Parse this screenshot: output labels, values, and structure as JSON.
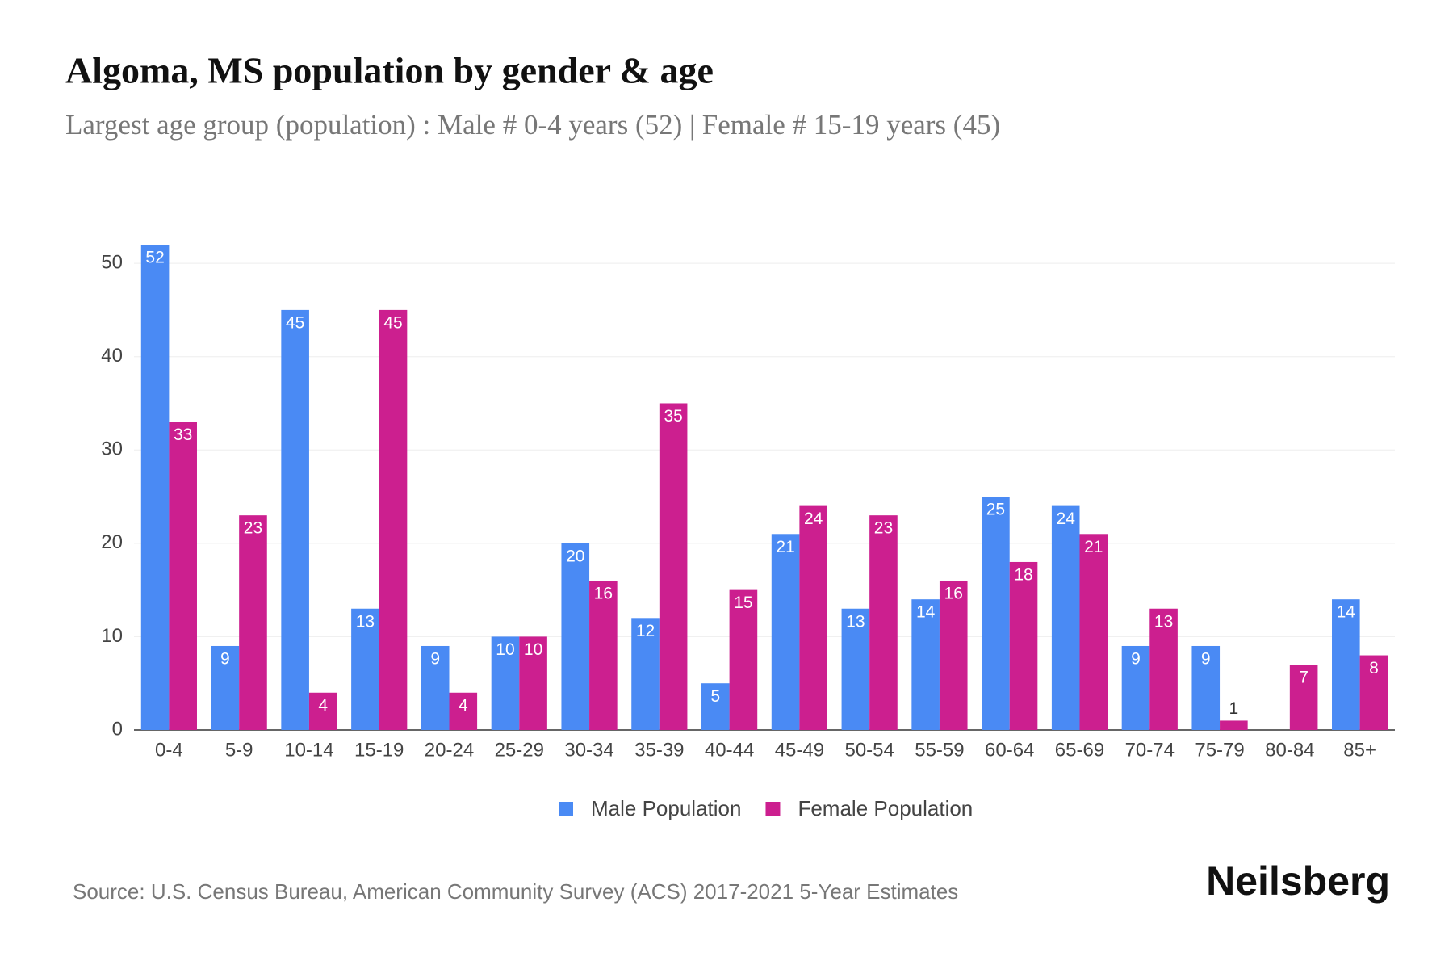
{
  "chart_data": {
    "type": "bar",
    "title": "Algoma, MS population by gender & age",
    "subtitle": "Largest age group (population) : Male # 0-4 years (52) | Female # 15-19 years (45)",
    "source": "Source: U.S. Census Bureau, American Community Survey (ACS) 2017-2021 5-Year Estimates",
    "brand": "Neilsberg",
    "categories": [
      "0-4",
      "5-9",
      "10-14",
      "15-19",
      "20-24",
      "25-29",
      "30-34",
      "35-39",
      "40-44",
      "45-49",
      "50-54",
      "55-59",
      "60-64",
      "65-69",
      "70-74",
      "75-79",
      "80-84",
      "85+"
    ],
    "series": [
      {
        "name": "Male Population",
        "color": "#4a8af4",
        "values": [
          52,
          9,
          45,
          13,
          9,
          10,
          20,
          12,
          5,
          21,
          13,
          14,
          25,
          24,
          9,
          9,
          0,
          14
        ]
      },
      {
        "name": "Female Population",
        "color": "#cc1f8f",
        "values": [
          33,
          23,
          4,
          45,
          4,
          10,
          16,
          35,
          15,
          24,
          23,
          16,
          18,
          21,
          13,
          1,
          7,
          8
        ]
      }
    ],
    "ylim": [
      0,
      52
    ],
    "yticks": [
      0,
      10,
      20,
      30,
      40,
      50
    ],
    "grid": true,
    "legend": "bottom"
  }
}
